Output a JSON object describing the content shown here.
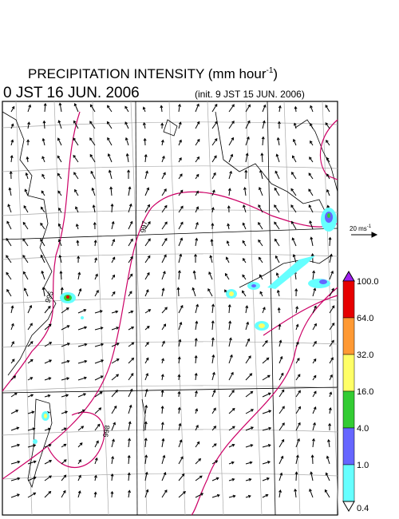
{
  "header": {
    "title": "PRECIPITATION INTENSITY (mm hour",
    "title_sup": "-1",
    "title_end": ")",
    "valid_time": "0 JST 16 JUN. 2006",
    "init_time": "(init. 9 JST 15 JUN. 2006)"
  },
  "wind_scale": {
    "label": "20 ms",
    "label_sup": "-1"
  },
  "contour_labels": [
    "995",
    "997",
    "998"
  ],
  "legend": {
    "labels": [
      "100.0",
      "64.0",
      "32.0",
      "16.0",
      "4.0",
      "1.0",
      "0.4"
    ],
    "colors": [
      "#a020f0",
      "#e60000",
      "#ff9933",
      "#ffff66",
      "#33cc33",
      "#6666ff",
      "#66ffff",
      "#ffffff"
    ]
  }
}
